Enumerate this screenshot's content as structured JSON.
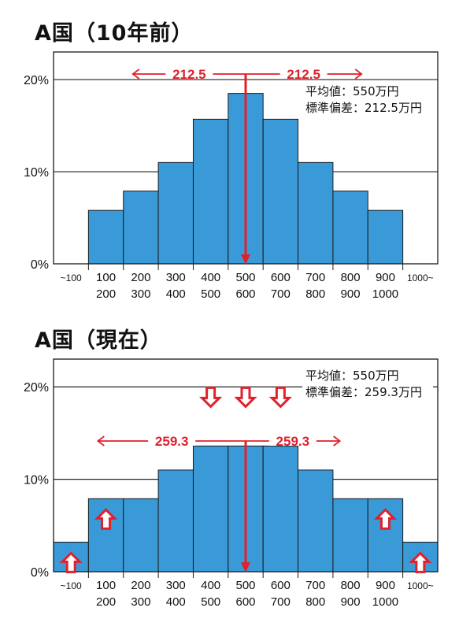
{
  "chart_data": [
    {
      "type": "bar",
      "title": "A国（10年前）",
      "categories": [
        {
          "top": "~100",
          "bottom": ""
        },
        {
          "top": "100",
          "bottom": "200"
        },
        {
          "top": "200",
          "bottom": "300"
        },
        {
          "top": "300",
          "bottom": "400"
        },
        {
          "top": "400",
          "bottom": "500"
        },
        {
          "top": "500",
          "bottom": "600"
        },
        {
          "top": "600",
          "bottom": "700"
        },
        {
          "top": "700",
          "bottom": "800"
        },
        {
          "top": "800",
          "bottom": "900"
        },
        {
          "top": "900",
          "bottom": "1000"
        },
        {
          "top": "1000~",
          "bottom": ""
        }
      ],
      "values": [
        0,
        5.8,
        7.9,
        11.0,
        15.7,
        18.5,
        15.7,
        11.0,
        7.9,
        5.8,
        0
      ],
      "ylim": [
        0,
        20
      ],
      "ylim_display_max": 23,
      "y_ticks": [
        "0%",
        "10%",
        "20%"
      ],
      "y_tick_values": [
        0,
        10,
        20
      ],
      "grid": true,
      "stats": {
        "mean_line": "平均値：550万円",
        "sd_line": "標準偏差：212.5万円"
      },
      "sd_arrow": {
        "left": "212.5",
        "right": "212.5",
        "span_bins": [
          2,
          9
        ]
      },
      "mean_bin": 5,
      "up_arrows": [],
      "down_arrows": []
    },
    {
      "type": "bar",
      "title": "A国（現在）",
      "categories": [
        {
          "top": "~100",
          "bottom": ""
        },
        {
          "top": "100",
          "bottom": "200"
        },
        {
          "top": "200",
          "bottom": "300"
        },
        {
          "top": "300",
          "bottom": "400"
        },
        {
          "top": "400",
          "bottom": "500"
        },
        {
          "top": "500",
          "bottom": "600"
        },
        {
          "top": "600",
          "bottom": "700"
        },
        {
          "top": "700",
          "bottom": "800"
        },
        {
          "top": "800",
          "bottom": "900"
        },
        {
          "top": "900",
          "bottom": "1000"
        },
        {
          "top": "1000~",
          "bottom": ""
        }
      ],
      "values": [
        3.2,
        7.9,
        7.9,
        11.0,
        13.6,
        13.6,
        13.6,
        11.0,
        7.9,
        7.9,
        3.2
      ],
      "ylim": [
        0,
        20
      ],
      "ylim_display_max": 23,
      "y_ticks": [
        "0%",
        "10%",
        "20%"
      ],
      "y_tick_values": [
        0,
        10,
        20
      ],
      "grid": true,
      "stats": {
        "mean_line": "平均値：550万円",
        "sd_line": "標準偏差：259.3万円"
      },
      "sd_arrow": {
        "left": "259.3",
        "right": "259.3",
        "span_bins": [
          1,
          10
        ]
      },
      "mean_bin": 5,
      "up_arrows": [
        0,
        1,
        9,
        10
      ],
      "down_arrows": [
        4,
        5,
        6
      ]
    }
  ],
  "colors": {
    "bar": "#3a9ad8",
    "bar_edge": "#1a1a1a",
    "accent": "#e0212c",
    "grid": "#222222"
  }
}
